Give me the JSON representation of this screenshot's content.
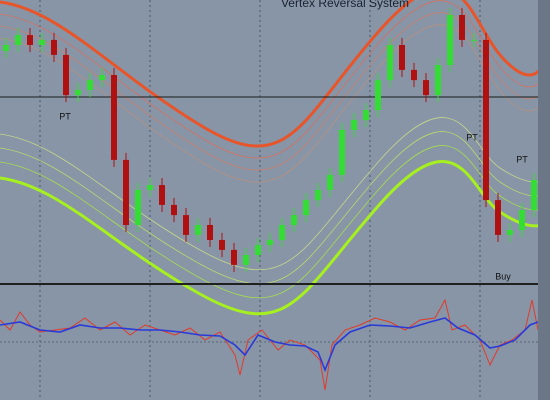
{
  "chart_data": {
    "type": "candlestick",
    "title": "Vertex Reversal System",
    "ylim": [
      0,
      100
    ],
    "up_color": "#33dd33",
    "down_color": "#b01010",
    "open": [
      82.0,
      84.1,
      87.6,
      84.1,
      85.9,
      80.6,
      66.4,
      68.2,
      71.7,
      73.5,
      43.5,
      20.5,
      32.9,
      34.6,
      27.6,
      24.0,
      17.0,
      20.5,
      15.2,
      11.7,
      6.4,
      9.9,
      13.4,
      15.2,
      20.5,
      24.0,
      29.3,
      32.9,
      38.2,
      54.1,
      57.6,
      61.1,
      71.7,
      84.1,
      75.3,
      71.7,
      66.4,
      77.0,
      94.7,
      85.9,
      85.9,
      29.3,
      17.0,
      18.7,
      25.8
    ],
    "high": [
      86.6,
      90.1,
      90.1,
      88.4,
      88.4,
      83.1,
      70.7,
      74.2,
      76.0,
      76.0,
      46.0,
      35.4,
      37.1,
      37.1,
      30.1,
      26.5,
      23.0,
      23.0,
      17.7,
      14.2,
      12.4,
      15.9,
      17.7,
      23.0,
      26.5,
      31.8,
      35.4,
      40.7,
      56.6,
      60.1,
      63.6,
      74.2,
      86.6,
      86.6,
      77.8,
      74.2,
      79.5,
      97.2,
      97.2,
      88.4,
      88.4,
      31.8,
      21.2,
      28.3,
      38.9
    ],
    "low": [
      79.5,
      81.6,
      81.6,
      81.6,
      78.1,
      63.9,
      63.9,
      65.7,
      69.2,
      41.0,
      18.0,
      18.0,
      30.4,
      25.1,
      21.5,
      14.5,
      14.5,
      12.7,
      9.2,
      3.9,
      3.9,
      7.4,
      10.9,
      12.7,
      18.0,
      21.5,
      26.8,
      30.4,
      35.7,
      51.6,
      55.1,
      58.6,
      69.2,
      72.8,
      69.2,
      63.9,
      63.9,
      74.5,
      83.4,
      83.4,
      26.8,
      14.5,
      14.5,
      16.2,
      23.3
    ],
    "close": [
      84.1,
      87.6,
      84.1,
      85.9,
      80.6,
      66.4,
      68.2,
      71.7,
      73.5,
      43.5,
      20.5,
      32.9,
      34.6,
      27.6,
      24.0,
      17.0,
      20.5,
      15.2,
      11.7,
      6.4,
      9.9,
      13.4,
      15.2,
      20.5,
      24.0,
      29.3,
      32.9,
      38.2,
      54.1,
      57.6,
      61.1,
      71.7,
      84.1,
      75.3,
      71.7,
      66.4,
      77.0,
      94.7,
      85.9,
      85.9,
      29.3,
      17.0,
      18.7,
      25.8,
      36.4
    ],
    "annotations": [
      "PT",
      "PT",
      "PT",
      "Buy"
    ]
  }
}
